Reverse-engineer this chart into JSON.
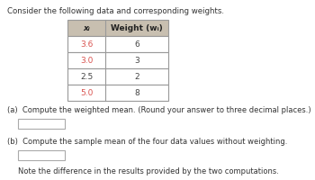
{
  "title": "Consider the following data and corresponding weights.",
  "col1_header": "xᵢ",
  "col2_header": "Weight (wᵢ)",
  "data_values": [
    "3.6",
    "3.0",
    "2.5",
    "5.0"
  ],
  "weight_values": [
    "6",
    "3",
    "2",
    "8"
  ],
  "data_colors": [
    "#d9534f",
    "#d9534f",
    "#444444",
    "#d9534f"
  ],
  "weight_colors": [
    "#444444",
    "#444444",
    "#444444",
    "#444444"
  ],
  "part_a_label": "(a)  Compute the weighted mean. (Round your answer to three decimal places.)",
  "part_b_label": "(b)  Compute the sample mean of the four data values without weighting.",
  "note_label": "Note the difference in the results provided by the two computations.",
  "bg_color": "#ffffff",
  "table_header_bg": "#c8bfb0",
  "table_row_bg": "#ffffff",
  "table_border_color": "#999999",
  "title_color": "#333333",
  "text_color": "#333333",
  "note_color": "#333333",
  "part_label_color": "#333333"
}
